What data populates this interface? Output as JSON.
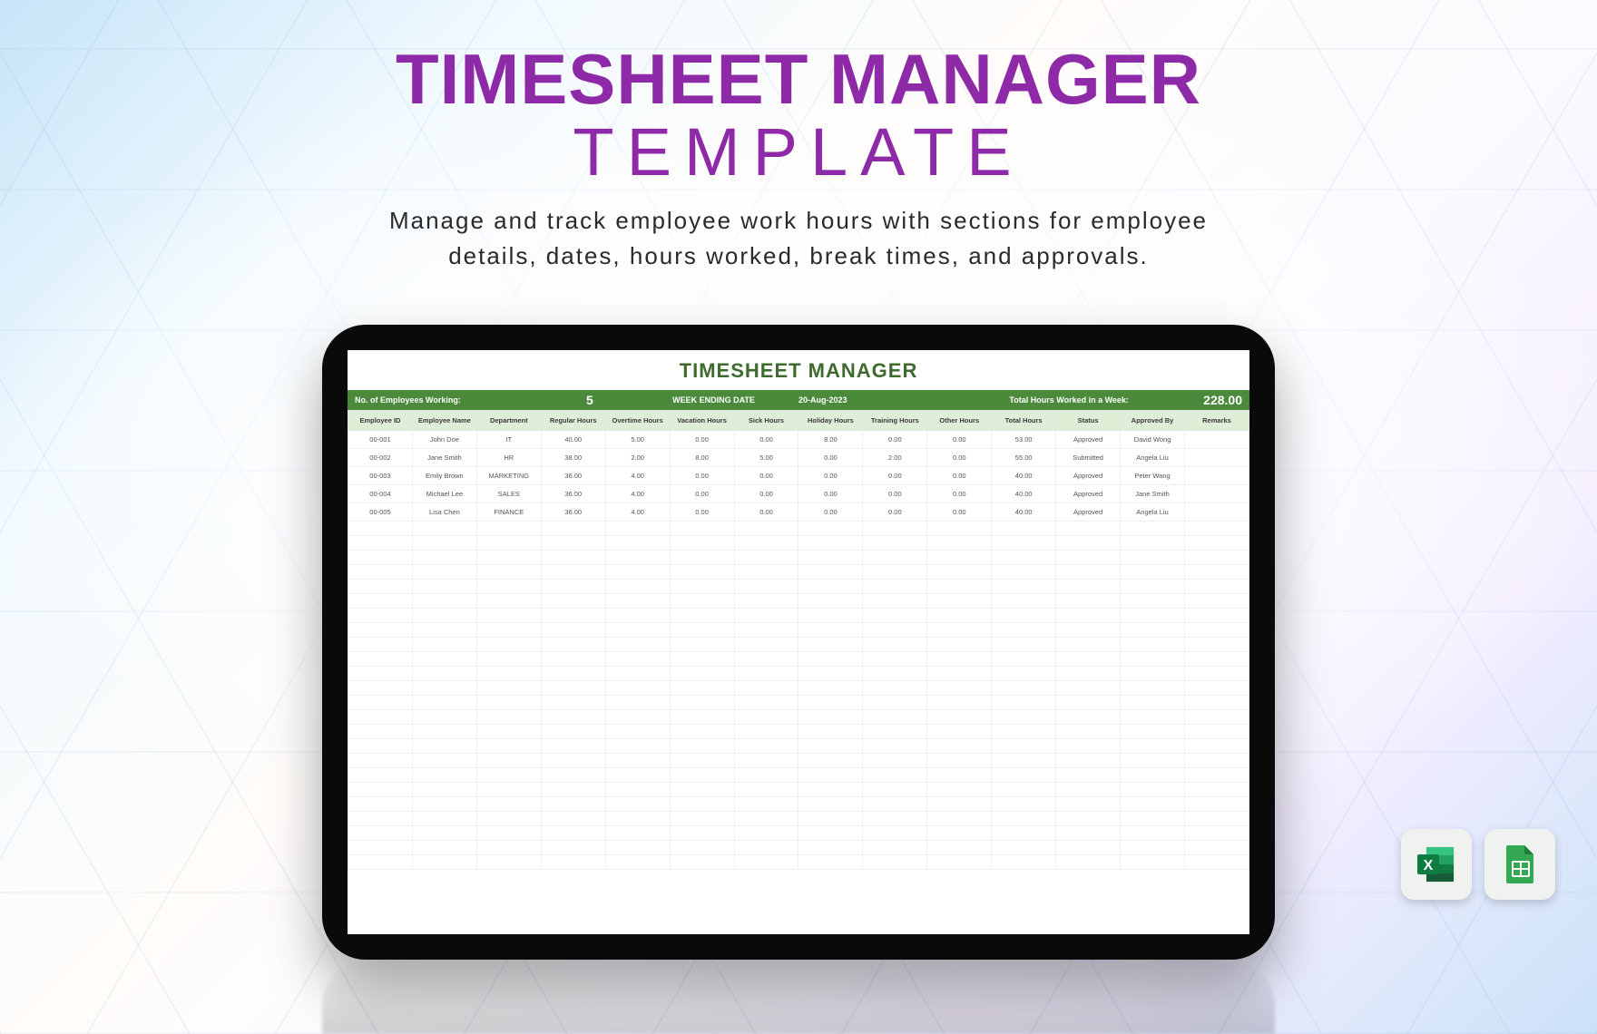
{
  "headline": {
    "line1": "TIMESHEET MANAGER",
    "line2": "TEMPLATE",
    "subtitle_l1": "Manage and track employee work hours with sections for employee",
    "subtitle_l2": "details, dates, hours worked, break times, and approvals."
  },
  "colors": {
    "headline_purple": "#8e2aa8",
    "sheet_title_green": "#3f6b2f",
    "summary_bar_green": "#4a8a3a",
    "header_row_green": "#dfeed6",
    "bg_gradient_start": "#b4dcf5",
    "bg_gradient_end": "#b9d7f5",
    "excel_dark": "#107c41",
    "excel_light": "#21a366",
    "gsheets_green": "#34a853"
  },
  "sheet": {
    "title": "TIMESHEET MANAGER",
    "summary": {
      "employees_label": "No. of Employees Working:",
      "employees_value": "5",
      "week_ending_label": "WEEK ENDING DATE",
      "week_ending_value": "20-Aug-2023",
      "total_hours_label": "Total Hours Worked in a Week:",
      "total_hours_value": "228.00"
    },
    "columns": [
      "Employee ID",
      "Employee Name",
      "Department",
      "Regular Hours",
      "Overtime Hours",
      "Vacation Hours",
      "Sick Hours",
      "Holiday Hours",
      "Training Hours",
      "Other Hours",
      "Total Hours",
      "Status",
      "Approved By",
      "Remarks"
    ],
    "rows": [
      [
        "00-001",
        "John Doe",
        "IT",
        "40.00",
        "5.00",
        "0.00",
        "0.00",
        "8.00",
        "0.00",
        "0.00",
        "53.00",
        "Approved",
        "David Wong",
        ""
      ],
      [
        "00-002",
        "Jane Smith",
        "HR",
        "38.00",
        "2.00",
        "8.00",
        "5.00",
        "0.00",
        "2.00",
        "0.00",
        "55.00",
        "Submitted",
        "Angela Liu",
        ""
      ],
      [
        "00-003",
        "Emily Brown",
        "MARKETING",
        "36.00",
        "4.00",
        "0.00",
        "0.00",
        "0.00",
        "0.00",
        "0.00",
        "40.00",
        "Approved",
        "Peter Wang",
        ""
      ],
      [
        "00-004",
        "Michael Lee",
        "SALES",
        "36.00",
        "4.00",
        "0.00",
        "0.00",
        "0.00",
        "0.00",
        "0.00",
        "40.00",
        "Approved",
        "Jane Smith",
        ""
      ],
      [
        "00-005",
        "Lisa Chen",
        "FINANCE",
        "36.00",
        "4.00",
        "0.00",
        "0.00",
        "0.00",
        "0.00",
        "0.00",
        "40.00",
        "Approved",
        "Angela Liu",
        ""
      ]
    ],
    "empty_row_count": 24
  },
  "file_icons": {
    "excel": "excel-icon",
    "gsheets": "google-sheets-icon"
  }
}
